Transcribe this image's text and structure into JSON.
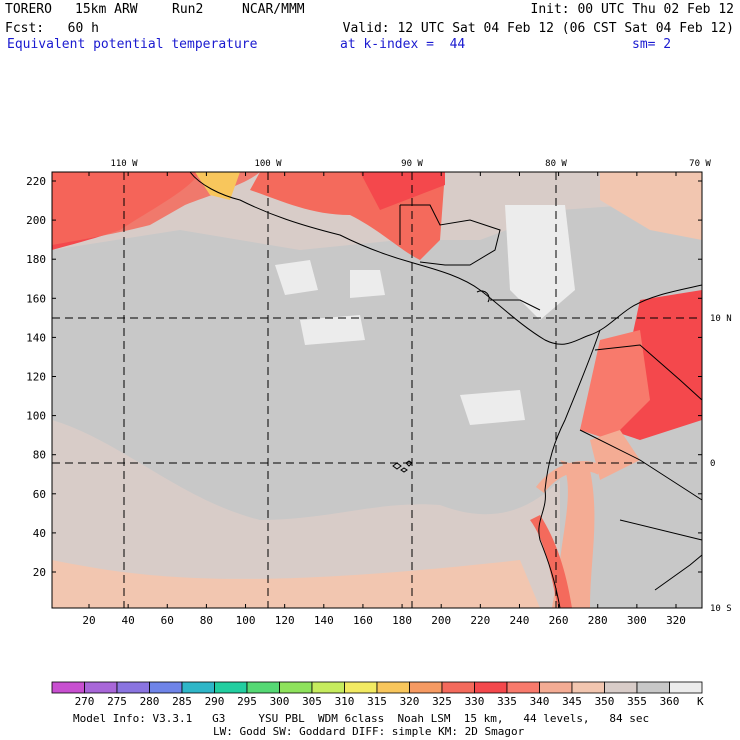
{
  "header": {
    "model_name": "TORERO",
    "resolution": "15km ARW",
    "run": "Run2",
    "org": "NCAR/MMM",
    "init": "Init: 00 UTC Thu 02 Feb 12",
    "fcst": "Fcst:   60 h",
    "valid": "Valid: 12 UTC Sat 04 Feb 12 (06 CST Sat 04 Feb 12)",
    "field": "Equivalent potential temperature",
    "level": "at k-index =  44",
    "smoothing": "sm= 2"
  },
  "map": {
    "lon_labels": [
      "110 W",
      "100 W",
      "90 W",
      "80 W",
      "70 W"
    ],
    "lat_labels": [
      "10 N",
      "0",
      "10 S"
    ],
    "x_ticks": [
      20,
      40,
      60,
      80,
      100,
      120,
      140,
      160,
      180,
      200,
      220,
      240,
      260,
      280,
      300,
      320
    ],
    "y_ticks": [
      20,
      40,
      60,
      80,
      100,
      120,
      140,
      160,
      180,
      200,
      220
    ]
  },
  "colorbar": {
    "levels": [
      "270",
      "275",
      "280",
      "285",
      "290",
      "295",
      "300",
      "305",
      "310",
      "315",
      "320",
      "325",
      "330",
      "335",
      "340",
      "345",
      "350",
      "355",
      "360"
    ],
    "unit": "K",
    "colors": [
      "#c84fd0",
      "#a866d8",
      "#8a74e0",
      "#6f84e8",
      "#2fb6c8",
      "#22cea0",
      "#55d874",
      "#8ee25c",
      "#c6ec5e",
      "#f2ea62",
      "#f8c65c",
      "#f69a62",
      "#f46a5c",
      "#f4484c",
      "#f87a6c",
      "#f4ac94",
      "#f2c6b0",
      "#d8ccc8",
      "#c8c8c8",
      "#ececec"
    ]
  },
  "footer": {
    "line1": "Model Info: V3.3.1   G3     YSU PBL  WDM 6class  Noah LSM  15 km,   44 levels,   84 sec",
    "line2": "LW: Godd SW: Goddard DIFF: simple KM: 2D Smagor"
  }
}
